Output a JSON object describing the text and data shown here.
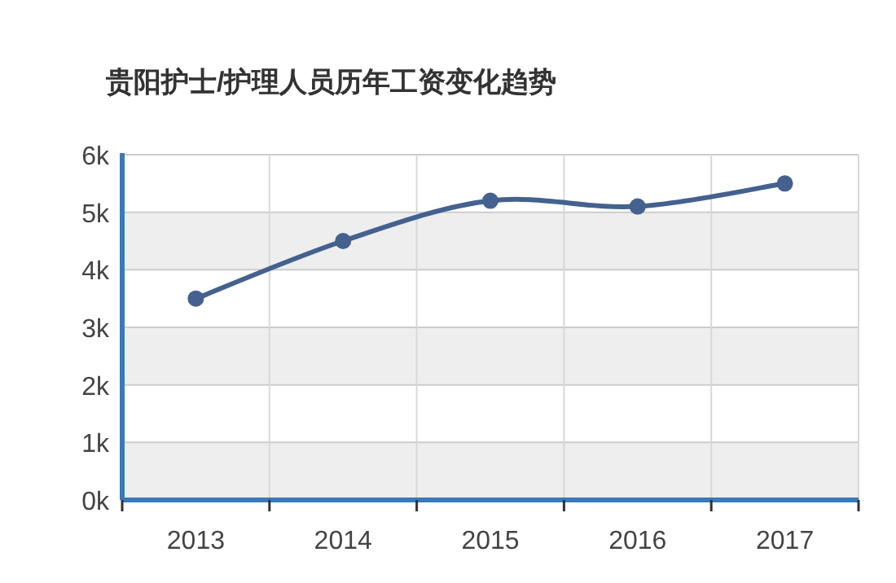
{
  "chart_data": {
    "type": "line",
    "title": "贵阳护士/护理人员历年工资变化趋势",
    "categories": [
      "2013",
      "2014",
      "2015",
      "2016",
      "2017"
    ],
    "series": [
      {
        "color": "#44618f",
        "values": [
          3500,
          4500,
          5200,
          5100,
          5500
        ]
      }
    ],
    "ylim": [
      0,
      6000
    ],
    "yticks": [
      {
        "value": 0,
        "label": "0k"
      },
      {
        "value": 1000,
        "label": "1k"
      },
      {
        "value": 2000,
        "label": "2k"
      },
      {
        "value": 3000,
        "label": "3k"
      },
      {
        "value": 4000,
        "label": "4k"
      },
      {
        "value": 5000,
        "label": "5k"
      },
      {
        "value": 6000,
        "label": "6k"
      }
    ],
    "grid": true,
    "marker": "circle"
  }
}
